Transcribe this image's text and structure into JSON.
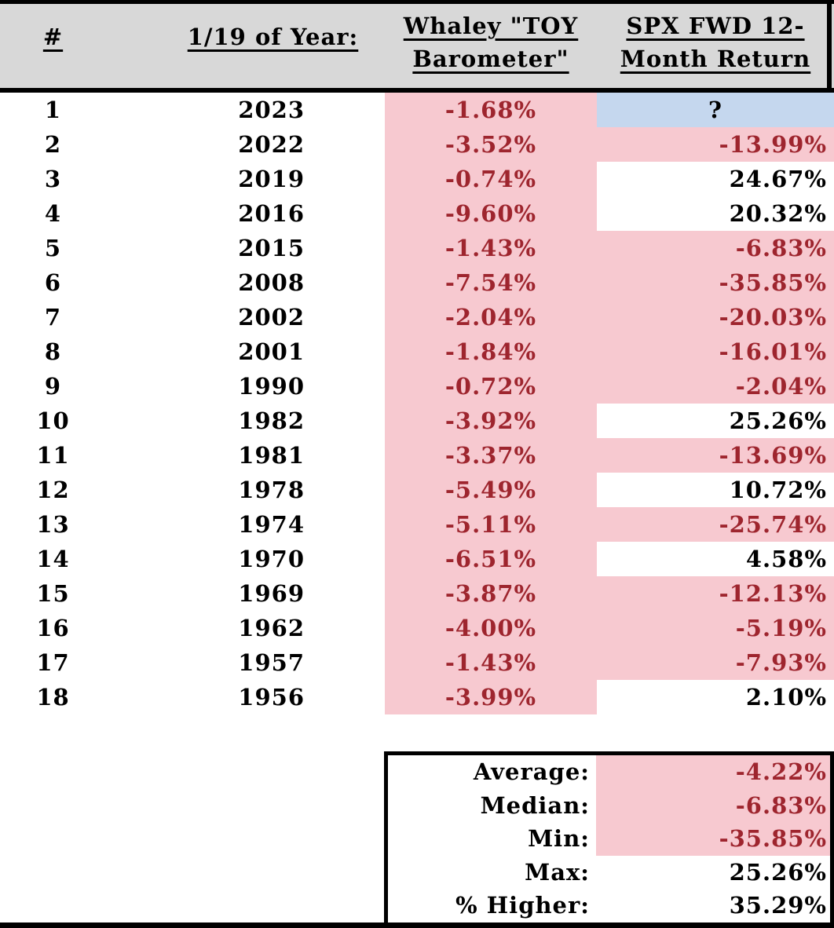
{
  "table": {
    "columns": [
      {
        "label": "#"
      },
      {
        "label": "1/19 of Year:"
      },
      {
        "label": "Whaley \"TOY Barometer\""
      },
      {
        "label": "SPX FWD 12-Month Return"
      }
    ],
    "rows": [
      {
        "num": "1",
        "year": "2023",
        "toy": "-1.68%",
        "spx": "?",
        "spx_state": "unknown"
      },
      {
        "num": "2",
        "year": "2022",
        "toy": "-3.52%",
        "spx": "-13.99%",
        "spx_state": "negative"
      },
      {
        "num": "3",
        "year": "2019",
        "toy": "-0.74%",
        "spx": "24.67%",
        "spx_state": "positive"
      },
      {
        "num": "4",
        "year": "2016",
        "toy": "-9.60%",
        "spx": "20.32%",
        "spx_state": "positive"
      },
      {
        "num": "5",
        "year": "2015",
        "toy": "-1.43%",
        "spx": "-6.83%",
        "spx_state": "negative"
      },
      {
        "num": "6",
        "year": "2008",
        "toy": "-7.54%",
        "spx": "-35.85%",
        "spx_state": "negative"
      },
      {
        "num": "7",
        "year": "2002",
        "toy": "-2.04%",
        "spx": "-20.03%",
        "spx_state": "negative"
      },
      {
        "num": "8",
        "year": "2001",
        "toy": "-1.84%",
        "spx": "-16.01%",
        "spx_state": "negative"
      },
      {
        "num": "9",
        "year": "1990",
        "toy": "-0.72%",
        "spx": "-2.04%",
        "spx_state": "negative"
      },
      {
        "num": "10",
        "year": "1982",
        "toy": "-3.92%",
        "spx": "25.26%",
        "spx_state": "positive"
      },
      {
        "num": "11",
        "year": "1981",
        "toy": "-3.37%",
        "spx": "-13.69%",
        "spx_state": "negative"
      },
      {
        "num": "12",
        "year": "1978",
        "toy": "-5.49%",
        "spx": "10.72%",
        "spx_state": "positive"
      },
      {
        "num": "13",
        "year": "1974",
        "toy": "-5.11%",
        "spx": "-25.74%",
        "spx_state": "negative"
      },
      {
        "num": "14",
        "year": "1970",
        "toy": "-6.51%",
        "spx": "4.58%",
        "spx_state": "positive"
      },
      {
        "num": "15",
        "year": "1969",
        "toy": "-3.87%",
        "spx": "-12.13%",
        "spx_state": "negative"
      },
      {
        "num": "16",
        "year": "1962",
        "toy": "-4.00%",
        "spx": "-5.19%",
        "spx_state": "negative"
      },
      {
        "num": "17",
        "year": "1957",
        "toy": "-1.43%",
        "spx": "-7.93%",
        "spx_state": "negative"
      },
      {
        "num": "18",
        "year": "1956",
        "toy": "-3.99%",
        "spx": "2.10%",
        "spx_state": "positive"
      }
    ]
  },
  "summary": {
    "rows": [
      {
        "label": "Average:",
        "value": "-4.22%",
        "highlight": true
      },
      {
        "label": "Median:",
        "value": "-6.83%",
        "highlight": true
      },
      {
        "label": "Min:",
        "value": "-35.85%",
        "highlight": true
      },
      {
        "label": "Max:",
        "value": "25.26%",
        "highlight": false
      },
      {
        "label": "% Higher:",
        "value": "35.29%",
        "highlight": false
      }
    ]
  },
  "colors": {
    "header_bg": "#d8d8d8",
    "negative_bg": "#f7c9d0",
    "negative_text": "#9e252e",
    "unknown_bg": "#c5d7ee"
  },
  "chart_data": {
    "type": "table",
    "title": "Whaley \"TOY Barometer\" vs SPX forward 12-month return",
    "columns": [
      "#",
      "1/19 of Year:",
      "Whaley \"TOY Barometer\"",
      "SPX FWD 12-Month Return"
    ],
    "rows": [
      [
        1,
        2023,
        -1.68,
        null
      ],
      [
        2,
        2022,
        -3.52,
        -13.99
      ],
      [
        3,
        2019,
        -0.74,
        24.67
      ],
      [
        4,
        2016,
        -9.6,
        20.32
      ],
      [
        5,
        2015,
        -1.43,
        -6.83
      ],
      [
        6,
        2008,
        -7.54,
        -35.85
      ],
      [
        7,
        2002,
        -2.04,
        -20.03
      ],
      [
        8,
        2001,
        -1.84,
        -16.01
      ],
      [
        9,
        1990,
        -0.72,
        -2.04
      ],
      [
        10,
        1982,
        -3.92,
        25.26
      ],
      [
        11,
        1981,
        -3.37,
        -13.69
      ],
      [
        12,
        1978,
        -5.49,
        10.72
      ],
      [
        13,
        1974,
        -5.11,
        -25.74
      ],
      [
        14,
        1970,
        -6.51,
        4.58
      ],
      [
        15,
        1969,
        -3.87,
        -12.13
      ],
      [
        16,
        1962,
        -4.0,
        -5.19
      ],
      [
        17,
        1957,
        -1.43,
        -7.93
      ],
      [
        18,
        1956,
        -3.99,
        2.1
      ]
    ],
    "summary": {
      "Average": -4.22,
      "Median": -6.83,
      "Min": -35.85,
      "Max": 25.26,
      "% Higher": 35.29
    }
  }
}
